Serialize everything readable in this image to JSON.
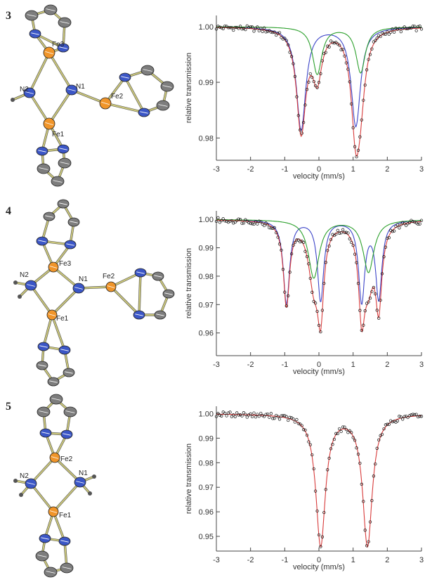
{
  "colors": {
    "fit_total": "#d83b3b",
    "fit_site_a": "#3c44c8",
    "fit_site_b": "#2ca02c",
    "data_points": "#111111",
    "bond": "#c9c57a",
    "iron_atom": "#f0952a",
    "nitrogen_atom": "#3b56c6",
    "carbon_atom": "#7d7d7d"
  },
  "panels": [
    {
      "compound": "3",
      "atom_labels": [
        "Fe3",
        "N2",
        "N1",
        "Fe2",
        "Fe1"
      ],
      "chart_data": {
        "type": "line",
        "xlabel": "velocity (mm/s)",
        "ylabel": "relative transmission",
        "xlim": [
          -3,
          3
        ],
        "ylim": [
          0.976,
          1.002
        ],
        "xticks": [
          "-3",
          "-2",
          "-1",
          "0",
          "1",
          "2",
          "3"
        ],
        "yticks": [
          "1.00",
          "0.99",
          "0.98"
        ],
        "series": [
          {
            "role": "total-fit",
            "color": "fit_total",
            "sum_of_components": true
          },
          {
            "role": "component",
            "color": "fit_site_a",
            "components": [
              {
                "position": -0.52,
                "width": 0.33,
                "depth": 0.0185
              },
              {
                "position": 1.08,
                "width": 0.33,
                "depth": 0.0178
              }
            ]
          },
          {
            "role": "component",
            "color": "fit_site_b",
            "components": [
              {
                "position": -0.05,
                "width": 0.33,
                "depth": 0.0085
              },
              {
                "position": 1.22,
                "width": 0.33,
                "depth": 0.0082
              }
            ]
          },
          {
            "role": "data-points",
            "color": "data_points",
            "points_per_mm_s": 20
          }
        ]
      }
    },
    {
      "compound": "4",
      "atom_labels": [
        "Fe3",
        "N2",
        "N1",
        "Fe2",
        "Fe1"
      ],
      "chart_data": {
        "type": "line",
        "xlabel": "velocity (mm/s)",
        "ylabel": "relative transmission",
        "xlim": [
          -3,
          3
        ],
        "ylim": [
          0.952,
          1.003
        ],
        "xticks": [
          "-3",
          "-2",
          "-1",
          "0",
          "1",
          "2",
          "3"
        ],
        "yticks": [
          "1.00",
          "0.99",
          "0.98",
          "0.97",
          "0.96"
        ],
        "series": [
          {
            "role": "total-fit",
            "color": "fit_total",
            "sum_of_components": true
          },
          {
            "role": "component",
            "color": "fit_site_a",
            "components": [
              {
                "position": -0.95,
                "width": 0.22,
                "depth": 0.0295
              },
              {
                "position": 1.25,
                "width": 0.22,
                "depth": 0.0285
              },
              {
                "position": 0.05,
                "width": 0.22,
                "depth": 0.0285
              },
              {
                "position": 1.75,
                "width": 0.22,
                "depth": 0.0275
              }
            ]
          },
          {
            "role": "component",
            "color": "fit_site_b",
            "components": [
              {
                "position": -0.15,
                "width": 0.38,
                "depth": 0.0205
              },
              {
                "position": 1.45,
                "width": 0.38,
                "depth": 0.0185
              }
            ]
          },
          {
            "role": "data-points",
            "color": "data_points",
            "points_per_mm_s": 20
          }
        ]
      }
    },
    {
      "compound": "5",
      "atom_labels": [
        "Fe2",
        "N2",
        "N1",
        "Fe1"
      ],
      "chart_data": {
        "type": "line",
        "xlabel": "velocity (mm/s)",
        "ylabel": "relative transmission",
        "xlim": [
          -3,
          3
        ],
        "ylim": [
          0.944,
          1.003
        ],
        "xticks": [
          "-3",
          "-2",
          "-1",
          "0",
          "1",
          "2",
          "3"
        ],
        "yticks": [
          "1.00",
          "0.99",
          "0.98",
          "0.97",
          "0.96",
          "0.95"
        ],
        "series": [
          {
            "role": "total-fit",
            "color": "fit_total",
            "sum_of_components": true,
            "components": [
              {
                "position": 0.05,
                "width": 0.34,
                "depth": 0.0535
              },
              {
                "position": 1.42,
                "width": 0.34,
                "depth": 0.0535
              }
            ]
          },
          {
            "role": "data-points",
            "color": "data_points",
            "points_per_mm_s": 20
          }
        ]
      }
    }
  ]
}
